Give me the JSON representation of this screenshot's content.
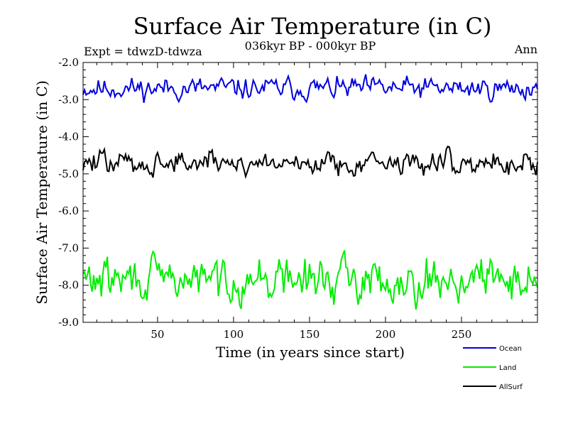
{
  "chart_data": {
    "type": "line",
    "title": "Surface Air Temperature (in C)",
    "subtitle": "036kyr BP - 000kyr BP",
    "left_note": "Expt = tdwzD-tdwza",
    "right_note": "Ann",
    "xlabel": "Time (in years since start)",
    "ylabel": "Surface Air Temperature (in C)",
    "xlim": [
      1,
      300
    ],
    "ylim": [
      -9.0,
      -2.0
    ],
    "xticks": [
      50,
      100,
      150,
      200,
      250
    ],
    "yticks": [
      -2.0,
      -3.0,
      -4.0,
      -5.0,
      -6.0,
      -7.0,
      -8.0,
      -9.0
    ],
    "ytick_labels": [
      "-2.0",
      "-3.0",
      "-4.0",
      "-5.0",
      "-6.0",
      "-7.0",
      "-8.0",
      "-9.0"
    ],
    "legend_position": "bottom-right, outside plot",
    "series": [
      {
        "name": "Ocean",
        "color": "#0000dd",
        "mean": -2.7,
        "amplitude": 0.22,
        "seed": 11
      },
      {
        "name": "Land",
        "color": "#00ee00",
        "mean": -7.85,
        "amplitude": 0.42,
        "seed": 29
      },
      {
        "name": "AllSurf",
        "color": "#000000",
        "mean": -4.7,
        "amplitude": 0.24,
        "seed": 47
      }
    ]
  }
}
